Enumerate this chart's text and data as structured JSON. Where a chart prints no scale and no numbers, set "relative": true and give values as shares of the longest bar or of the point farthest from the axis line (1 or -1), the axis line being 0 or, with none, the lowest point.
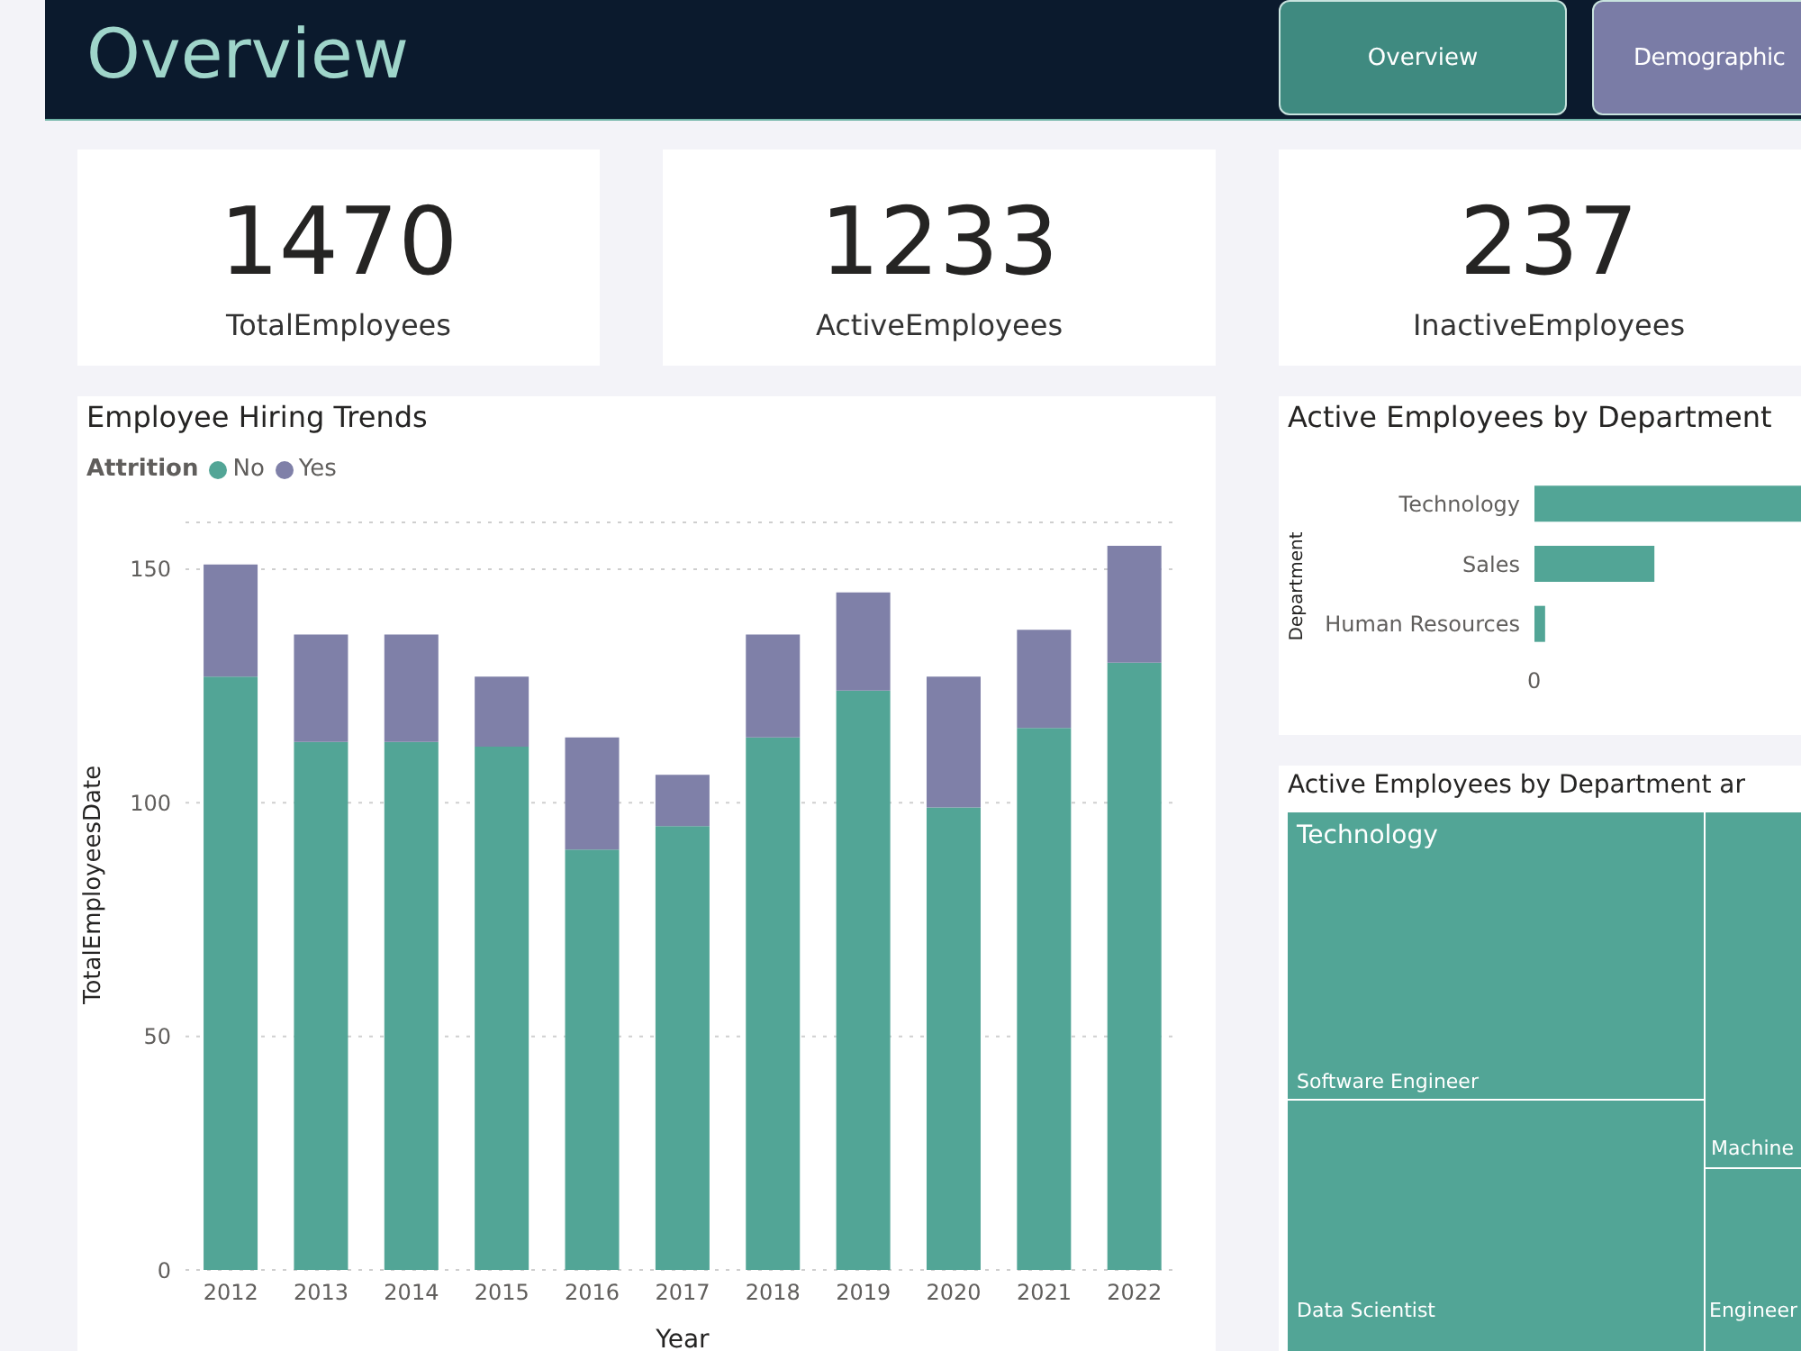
{
  "chart_data": [
    {
      "type": "other",
      "title": "Overview",
      "annotations": [
        "Overview",
        "Demographic",
        "1470",
        "TotalEmployees",
        "1233",
        "ActiveEmployees",
        "237",
        "InactiveEmployees"
      ]
    },
    {
      "type": "bar",
      "title": "Employee Hiring Trends",
      "legend_title": "Attrition",
      "xlabel": "Year",
      "ylabel": "TotalEmployeesDate",
      "stacked": true,
      "categories": [
        "2012",
        "2013",
        "2014",
        "2015",
        "2016",
        "2017",
        "2018",
        "2019",
        "2020",
        "2021",
        "2022"
      ],
      "series": [
        {
          "name": "No",
          "color": "#52a596",
          "values": [
            127,
            113,
            113,
            112,
            90,
            95,
            114,
            124,
            99,
            116,
            130
          ]
        },
        {
          "name": "Yes",
          "color": "#7f80a8",
          "values": [
            24,
            23,
            23,
            15,
            24,
            11,
            22,
            21,
            28,
            21,
            25
          ]
        }
      ],
      "ylim": [
        0,
        160
      ],
      "yticks": [
        0,
        50,
        100,
        150
      ],
      "grid": "y",
      "legend": "top left"
    },
    {
      "type": "bar",
      "orientation": "horizontal",
      "relative": true,
      "title": "Active Employees by Department",
      "ylabel": "Department",
      "categories": [
        "Technology",
        "Sales",
        "Human Resources"
      ],
      "values": [
        1,
        0.45,
        0.04
      ],
      "color": "#52a596",
      "annotations": [
        "0"
      ]
    },
    {
      "type": "other",
      "title": "Active Employees by Department ar",
      "categories": [
        "Technology",
        "Software Engineer",
        "Data Scientist",
        "Machine",
        "Engineer"
      ],
      "color": "#52a596"
    }
  ]
}
